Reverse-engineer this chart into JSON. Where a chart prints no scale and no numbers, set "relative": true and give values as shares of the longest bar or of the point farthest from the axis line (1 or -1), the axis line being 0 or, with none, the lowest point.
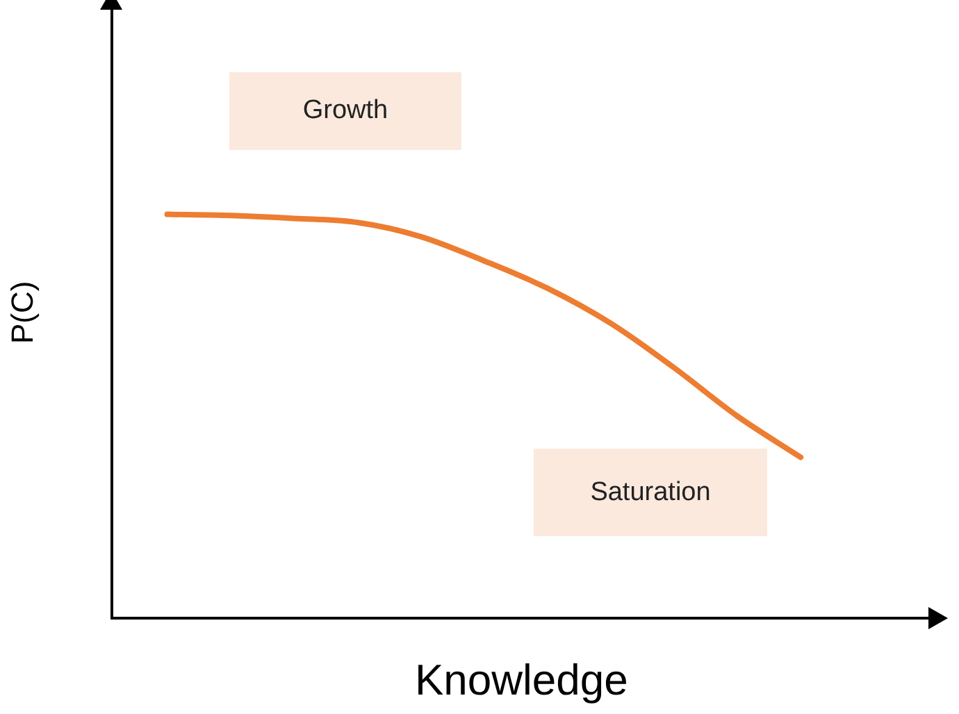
{
  "chart_data": {
    "type": "line",
    "xlabel": "Knowledge",
    "ylabel": "P(C)",
    "relative": true,
    "grid": false,
    "legend": false,
    "marker": "none",
    "line_style": "solid",
    "categories": [
      null,
      null,
      null,
      null,
      null,
      null,
      null,
      null,
      null,
      null,
      null
    ],
    "series": [
      {
        "color": "#ed7d31",
        "values": [
          1.0,
          0.997,
          0.99,
          0.98,
          0.945,
          0.885,
          0.817,
          0.73,
          0.62,
          0.5,
          0.398
        ]
      }
    ],
    "annotations": [
      "Growth",
      "Saturation"
    ]
  }
}
